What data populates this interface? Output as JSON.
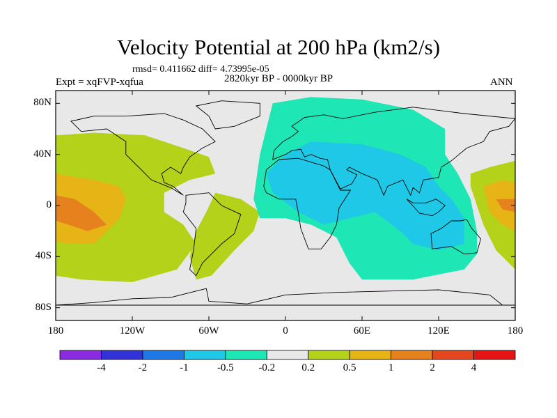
{
  "chart_data": {
    "type": "heatmap",
    "title": "Velocity Potential at 200 hPa (km2/s)",
    "subtitle": "2820kyr BP - 0000kyr BP",
    "stats": "rmsd= 0.411662  diff= 4.73995e-05",
    "experiment": "Expt = xqFVP-xqfua",
    "season": "ANN",
    "xlabel": "",
    "ylabel": "",
    "xlim": [
      -180,
      180
    ],
    "ylim": [
      -90,
      90
    ],
    "x_ticks": [
      "180",
      "120W",
      "60W",
      "0",
      "60E",
      "120E",
      "180"
    ],
    "x_tick_values": [
      -180,
      -120,
      -60,
      0,
      60,
      120,
      180
    ],
    "y_ticks": [
      "80N",
      "40N",
      "0",
      "40S",
      "80S"
    ],
    "y_tick_values": [
      80,
      40,
      0,
      -40,
      -80
    ],
    "colorbar": {
      "levels": [
        "-4",
        "-2",
        "-1",
        "-0.5",
        "-0.2",
        "0.2",
        "0.5",
        "1",
        "2",
        "4"
      ],
      "colors": [
        "#8a2be2",
        "#3232d9",
        "#1e78e6",
        "#1ec8e6",
        "#1ee6b4",
        "#e8e8e8",
        "#b4d219",
        "#e6b414",
        "#e6821e",
        "#e6461e",
        "#e61414"
      ]
    },
    "regions": [
      {
        "label": "Africa-Asia negative anomaly",
        "min_value": -0.5,
        "max_value": -0.2,
        "center_lon": 45,
        "center_lat": 5
      },
      {
        "label": "Africa-Asia core negative",
        "min_value": -1,
        "max_value": -0.5,
        "center_lon": 60,
        "center_lat": 5
      },
      {
        "label": "Eastern Pacific positive",
        "min_value": 0.2,
        "max_value": 0.5,
        "center_lon": -120,
        "center_lat": 0
      },
      {
        "label": "Eastern Pacific core positive",
        "min_value": 1,
        "max_value": 2,
        "center_lon": -155,
        "center_lat": 0
      },
      {
        "label": "Western Pacific positive",
        "min_value": 1,
        "max_value": 2,
        "center_lon": 170,
        "center_lat": 0
      }
    ]
  }
}
